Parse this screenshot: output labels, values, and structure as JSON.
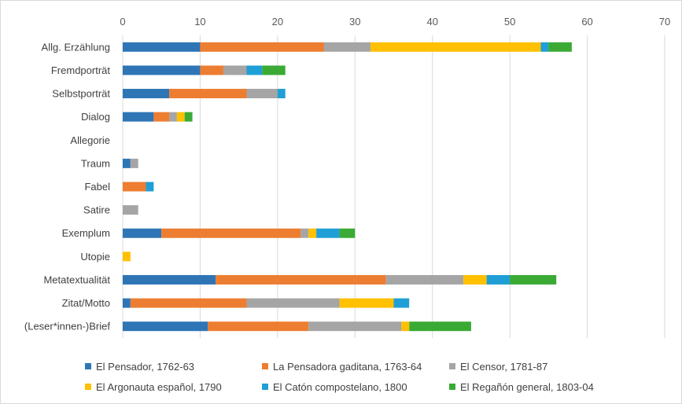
{
  "chart_data": {
    "type": "bar",
    "orientation": "horizontal",
    "stacked": true,
    "title": "",
    "xlabel": "",
    "ylabel": "",
    "xlim": [
      0,
      70
    ],
    "x_ticks": [
      "0",
      "10",
      "20",
      "30",
      "40",
      "50",
      "60",
      "70"
    ],
    "x_axis_position": "top",
    "grid": true,
    "legend_position": "bottom",
    "categories": [
      "Allg. Erzählung",
      "Fremdporträt",
      "Selbstporträt",
      "Dialog",
      "Allegorie",
      "Traum",
      "Fabel",
      "Satire",
      "Exemplum",
      "Utopie",
      "Metatextualität",
      "Zitat/Motto",
      "(Leser*innen-)Brief"
    ],
    "series": [
      {
        "name": "El Pensador, 1762-63",
        "color": "#2e75b6",
        "values": [
          10,
          10,
          6,
          4,
          0,
          1,
          0,
          0,
          5,
          0,
          12,
          1,
          11
        ]
      },
      {
        "name": "La Pensadora gaditana, 1763-64",
        "color": "#ed7d31",
        "values": [
          16,
          3,
          10,
          2,
          0,
          0,
          3,
          0,
          18,
          0,
          22,
          15,
          13
        ]
      },
      {
        "name": "El Censor, 1781-87",
        "color": "#a5a5a5",
        "values": [
          6,
          3,
          4,
          1,
          0,
          1,
          0,
          2,
          1,
          0,
          10,
          12,
          12
        ]
      },
      {
        "name": "El Argonauta español, 1790",
        "color": "#ffc000",
        "values": [
          22,
          0,
          0,
          1,
          0,
          0,
          0,
          0,
          1,
          1,
          3,
          7,
          1
        ]
      },
      {
        "name": "El Catón compostelano, 1800",
        "color": "#1f9fd6",
        "values": [
          1,
          2,
          1,
          0,
          0,
          0,
          1,
          0,
          3,
          0,
          3,
          2,
          0
        ]
      },
      {
        "name": "El Regañón general, 1803-04",
        "color": "#3aaa35",
        "values": [
          3,
          3,
          0,
          1,
          0,
          0,
          0,
          0,
          2,
          0,
          6,
          0,
          8
        ]
      }
    ]
  }
}
